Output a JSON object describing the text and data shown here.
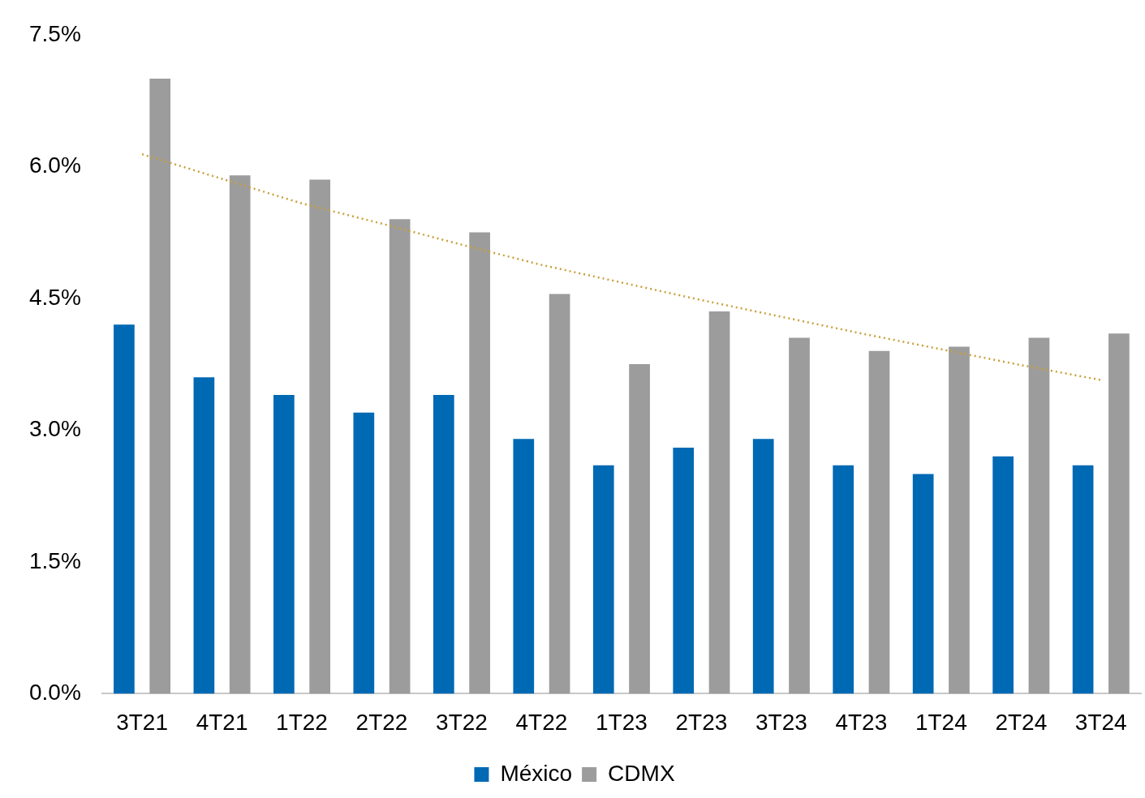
{
  "chart_data": {
    "type": "bar",
    "categories": [
      "3T21",
      "4T21",
      "1T22",
      "2T22",
      "3T22",
      "4T22",
      "1T23",
      "2T23",
      "3T23",
      "4T23",
      "1T24",
      "2T24",
      "3T24"
    ],
    "series": [
      {
        "name": "México",
        "color": "#0069b4",
        "values": [
          4.2,
          3.6,
          3.4,
          3.2,
          3.4,
          2.9,
          2.6,
          2.8,
          2.9,
          2.6,
          2.5,
          2.7,
          2.6
        ]
      },
      {
        "name": "CDMX",
        "color": "#9c9c9c",
        "values": [
          7.0,
          5.9,
          5.85,
          5.4,
          5.25,
          4.55,
          3.75,
          4.35,
          4.05,
          3.9,
          3.95,
          4.05,
          4.1
        ]
      },
      {
        "type": "line",
        "color": "#c9a03c",
        "line_style": "dotted",
        "marker": "none",
        "x": [
          "3T21",
          "4T21",
          "1T22",
          "2T22",
          "3T22",
          "4T22",
          "1T23",
          "2T23",
          "3T23",
          "4T23",
          "1T24",
          "2T24",
          "3T24"
        ],
        "values": [
          6.14,
          5.86,
          5.58,
          5.35,
          5.11,
          4.88,
          4.68,
          4.48,
          4.29,
          4.1,
          3.92,
          3.74,
          3.57
        ]
      }
    ],
    "ylim": [
      0,
      7.5
    ],
    "yticks": [
      {
        "value": 0,
        "label": "0.0%"
      },
      {
        "value": 1.5,
        "label": "1.5%"
      },
      {
        "value": 3,
        "label": "3.0%"
      },
      {
        "value": 4.5,
        "label": "4.5%"
      },
      {
        "value": 6,
        "label": "6.0%"
      },
      {
        "value": 7.5,
        "label": "7.5%"
      }
    ],
    "grid": false,
    "legend": "bottom"
  }
}
